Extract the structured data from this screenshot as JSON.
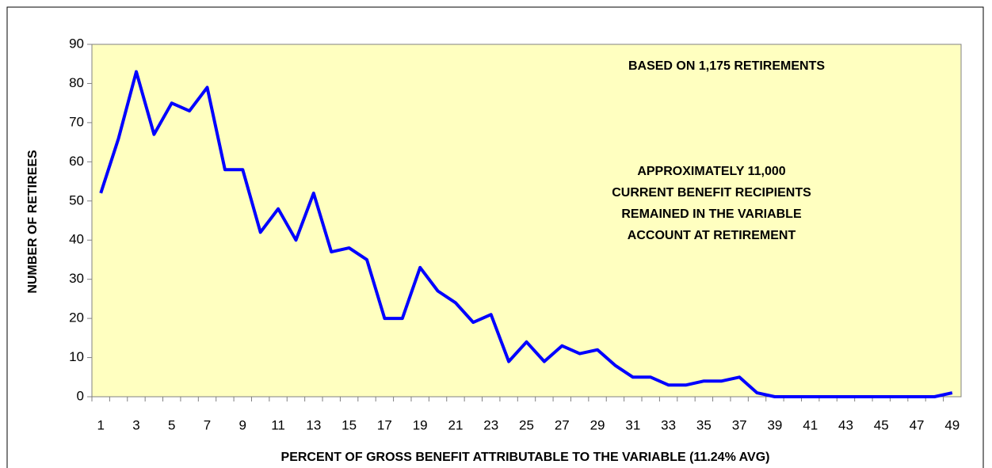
{
  "chart_data": {
    "type": "line",
    "x_label": "PERCENT OF GROSS BENEFIT ATTRIBUTABLE TO THE VARIABLE (11.24% AVG)",
    "y_label": "NUMBER OF RETIREES",
    "annotations": [
      [
        "BASED ON 1,175 RETIREMENTS"
      ],
      [
        "APPROXIMATELY 11,000",
        "CURRENT BENEFIT RECIPIENTS",
        "REMAINED IN THE VARIABLE",
        "ACCOUNT AT RETIREMENT"
      ]
    ],
    "categories": [
      1,
      null,
      3,
      null,
      5,
      null,
      7,
      null,
      9,
      null,
      11,
      null,
      13,
      null,
      15,
      null,
      17,
      null,
      19,
      null,
      21,
      null,
      23,
      null,
      25,
      null,
      27,
      null,
      29,
      null,
      31,
      null,
      33,
      null,
      35,
      null,
      37,
      null,
      39,
      null,
      41,
      null,
      43,
      null,
      45,
      null,
      47,
      null,
      49
    ],
    "values": [
      52,
      66,
      83,
      67,
      75,
      73,
      79,
      58,
      58,
      42,
      48,
      40,
      52,
      37,
      38,
      35,
      20,
      20,
      33,
      27,
      24,
      19,
      21,
      9,
      14,
      9,
      13,
      11,
      12,
      8,
      5,
      5,
      3,
      3,
      4,
      4,
      5,
      1,
      0,
      0,
      0,
      0,
      0,
      0,
      0,
      0,
      0,
      0,
      1
    ],
    "color": "#0000ff",
    "ylim": [
      0,
      90
    ],
    "yticks": [
      0,
      10,
      20,
      30,
      40,
      50,
      60,
      70,
      80,
      90
    ]
  }
}
